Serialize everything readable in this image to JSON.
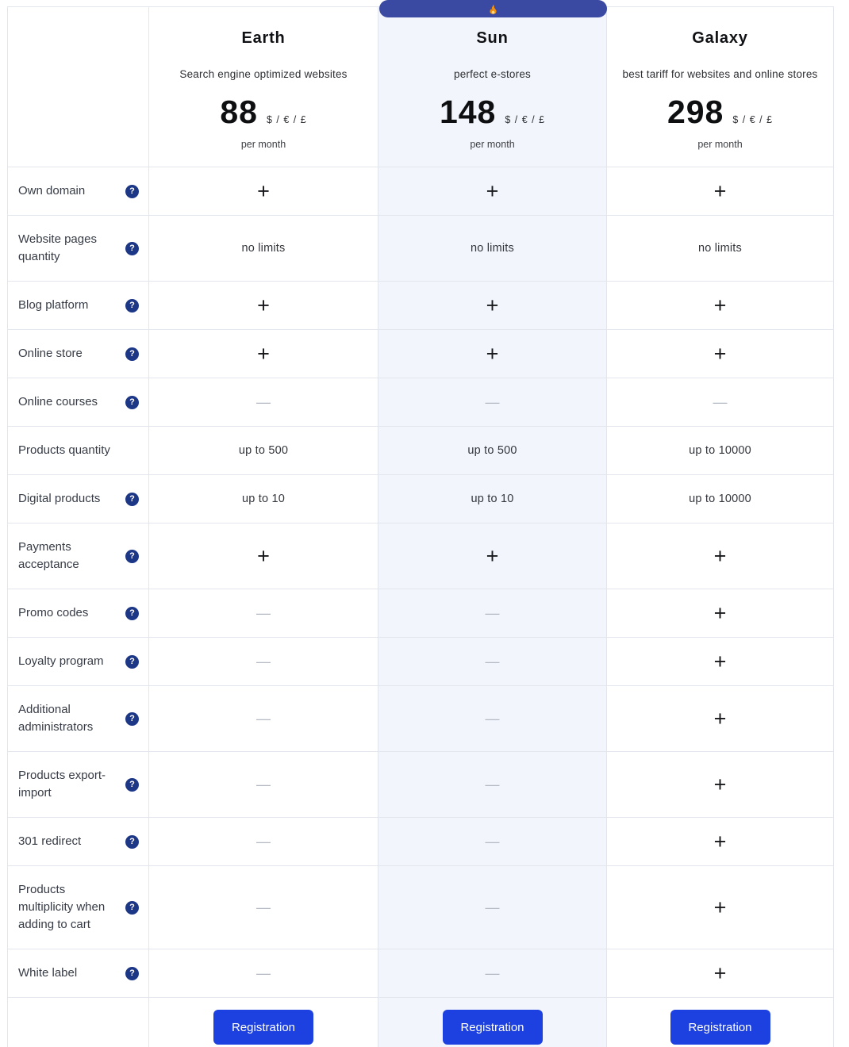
{
  "highlight_badge": {
    "icon": "flame-icon",
    "applies_to_plan": "Sun"
  },
  "plans": [
    {
      "name": "Earth",
      "description": "Search engine optimized websites",
      "price": "88",
      "currency": "$ / € / £",
      "period": "per month",
      "cta_label": "Registration",
      "highlighted": false
    },
    {
      "name": "Sun",
      "description": "perfect e-stores",
      "price": "148",
      "currency": "$ / € / £",
      "period": "per month",
      "cta_label": "Registration",
      "highlighted": true
    },
    {
      "name": "Galaxy",
      "description": "best tariff for websites and online stores",
      "price": "298",
      "currency": "$ / € / £",
      "period": "per month",
      "cta_label": "Registration",
      "highlighted": false
    }
  ],
  "help_icon_glyph": "?",
  "features": [
    {
      "label": "Own domain",
      "has_help_icon": true,
      "values": [
        "+",
        "+",
        "+"
      ]
    },
    {
      "label": "Website pages quantity",
      "has_help_icon": true,
      "values": [
        "no limits",
        "no limits",
        "no limits"
      ]
    },
    {
      "label": "Blog platform",
      "has_help_icon": true,
      "values": [
        "+",
        "+",
        "+"
      ]
    },
    {
      "label": "Online store",
      "has_help_icon": true,
      "values": [
        "+",
        "+",
        "+"
      ]
    },
    {
      "label": "Online courses",
      "has_help_icon": true,
      "values": [
        "—",
        "—",
        "—"
      ]
    },
    {
      "label": "Products quantity",
      "has_help_icon": false,
      "values": [
        "up to 500",
        "up to 500",
        "up to 10000"
      ]
    },
    {
      "label": "Digital products",
      "has_help_icon": true,
      "values": [
        "up to 10",
        "up to 10",
        "up to 10000"
      ]
    },
    {
      "label": "Payments acceptance",
      "has_help_icon": true,
      "values": [
        "+",
        "+",
        "+"
      ]
    },
    {
      "label": "Promo codes",
      "has_help_icon": true,
      "values": [
        "—",
        "—",
        "+"
      ]
    },
    {
      "label": "Loyalty program",
      "has_help_icon": true,
      "values": [
        "—",
        "—",
        "+"
      ]
    },
    {
      "label": "Additional administrators",
      "has_help_icon": true,
      "values": [
        "—",
        "—",
        "+"
      ]
    },
    {
      "label": "Products export-import",
      "has_help_icon": true,
      "values": [
        "—",
        "—",
        "+"
      ]
    },
    {
      "label": "301 redirect",
      "has_help_icon": true,
      "values": [
        "—",
        "—",
        "+"
      ]
    },
    {
      "label": "Products multiplicity when adding to cart",
      "has_help_icon": true,
      "values": [
        "—",
        "—",
        "+"
      ]
    },
    {
      "label": "White label",
      "has_help_icon": true,
      "values": [
        "—",
        "—",
        "+"
      ]
    }
  ],
  "colors": {
    "highlight_column_bg": "#f2f5fb",
    "badge_bg": "#3a4aa3",
    "help_icon_bg": "#1d3787",
    "button_bg": "#1d40e0",
    "border": "#e3e6ec",
    "dash": "#b4bac4"
  }
}
